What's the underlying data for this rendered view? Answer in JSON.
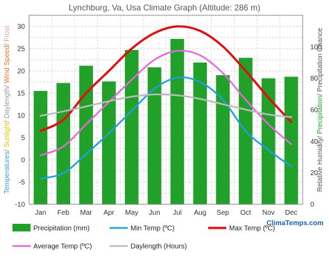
{
  "chart_data": {
    "type": "bar",
    "title": "Lynchburg, Va, Usa Climate Graph (Altitude: 286 m)",
    "categories": [
      "Jan",
      "Feb",
      "Mar",
      "Apr",
      "May",
      "Jun",
      "Jul",
      "Aug",
      "Sep",
      "Oct",
      "Nov",
      "Dec"
    ],
    "left_axis": {
      "ylim": [
        -10,
        32.5
      ],
      "ticks": [
        -10,
        -5,
        0,
        5,
        10,
        15,
        20,
        25,
        30
      ],
      "label_parts": [
        {
          "text": "Temperatures",
          "color": "#3b9be0"
        },
        {
          "text": "/ ",
          "color": "#888888"
        },
        {
          "text": "Sunlight",
          "color": "#e6c200"
        },
        {
          "text": "/ ",
          "color": "#888888"
        },
        {
          "text": "Daylength",
          "color": "#999999"
        },
        {
          "text": "/ ",
          "color": "#888888"
        },
        {
          "text": "Wind Speed",
          "color": "#e0762a"
        },
        {
          "text": "/ ",
          "color": "#888888"
        },
        {
          "text": "Frost",
          "color": "#e0a0a0"
        }
      ]
    },
    "right_axis": {
      "ylim": [
        0,
        120
      ],
      "ticks": [
        0,
        20,
        40,
        60,
        80,
        100
      ],
      "label_parts": [
        {
          "text": "Relative Humidity",
          "color": "#555555"
        },
        {
          "text": "/ ",
          "color": "#555555"
        },
        {
          "text": "Precipitation",
          "color": "#21a12a"
        },
        {
          "text": "/ Precipitation Chance",
          "color": "#555555"
        }
      ]
    },
    "series": [
      {
        "name": "Precipitation (mm)",
        "kind": "bar",
        "axis": "right",
        "color": "#21a12a",
        "values": [
          72,
          77,
          88,
          78,
          98,
          87,
          105,
          90,
          82,
          93,
          80,
          81
        ]
      },
      {
        "name": "Min Temp (ºC)",
        "kind": "line",
        "axis": "left",
        "color": "#1ea0db",
        "values": [
          -4.2,
          -3.0,
          1.3,
          6.0,
          11.0,
          16.0,
          18.5,
          17.5,
          13.5,
          6.5,
          2.2,
          -1.5
        ]
      },
      {
        "name": "Max Temp (ºC)",
        "kind": "line",
        "axis": "left",
        "color": "#dd1111",
        "values": [
          6.5,
          9.0,
          15.0,
          20.0,
          25.0,
          28.5,
          30.0,
          29.0,
          25.5,
          20.0,
          14.0,
          8.5
        ]
      },
      {
        "name": "Average Temp (ºC)",
        "kind": "line",
        "axis": "left",
        "color": "#e06ad8",
        "values": [
          1.0,
          3.0,
          8.0,
          13.0,
          18.0,
          22.5,
          24.5,
          23.5,
          19.5,
          13.5,
          8.0,
          3.5
        ]
      },
      {
        "name": "Daylength (Hours)",
        "kind": "line",
        "axis": "left",
        "color": "#bbbbbb",
        "values": [
          9.9,
          10.9,
          12.0,
          13.2,
          14.2,
          14.7,
          14.5,
          13.7,
          12.5,
          11.3,
          10.2,
          9.6
        ]
      }
    ],
    "grid": true,
    "legend_position": "bottom"
  },
  "brand": "ClimaTemps.com"
}
